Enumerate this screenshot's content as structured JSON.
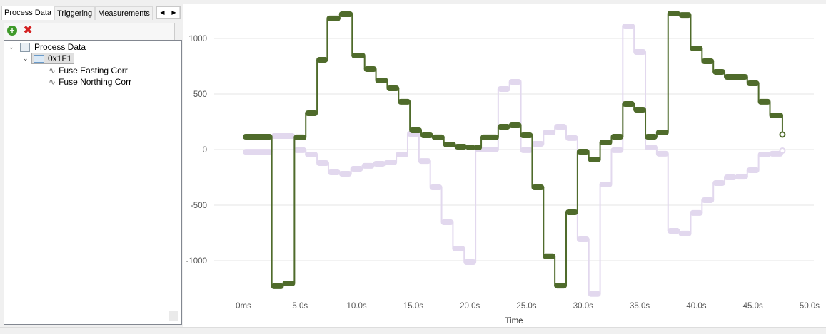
{
  "tabs": [
    "Process Data",
    "Triggering",
    "Measurements"
  ],
  "tab_nav": {
    "prev": "◀",
    "next": "▶"
  },
  "toolbar": {
    "add_icon": "add-circle-icon",
    "remove_icon": "remove-x-icon"
  },
  "tree": {
    "root": "Process Data",
    "group": "0x1F1",
    "channels": [
      "Fuse Easting Corr",
      "Fuse Northing Corr"
    ]
  },
  "colors": {
    "easting": "#4f6b2b",
    "northing": "#e2d8ee"
  },
  "chart_data": {
    "type": "line",
    "step": true,
    "xlabel": "Time",
    "ylabel": "",
    "xlim": [
      0,
      50
    ],
    "ylim": [
      -1310,
      1230
    ],
    "xticks": [
      0,
      5,
      10,
      15,
      20,
      25,
      30,
      35,
      40,
      45,
      50
    ],
    "xtick_labels": [
      "0ms",
      "5.0s",
      "10.0s",
      "15.0s",
      "20.0s",
      "25.0s",
      "30.0s",
      "35.0s",
      "40.0s",
      "45.0s",
      "50.0s"
    ],
    "yticks": [
      1000,
      500,
      0,
      -500,
      -1000
    ],
    "ytick_labels": [
      "1000",
      "500",
      "0",
      "-500",
      "-1000"
    ],
    "grid": true,
    "series": [
      {
        "name": "Fuse Easting Corr",
        "end": 47.6,
        "t": [
          0,
          2.5,
          3.5,
          4.5,
          5.5,
          6.5,
          7.4,
          8.5,
          9.6,
          10.7,
          11.7,
          12.7,
          13.7,
          14.7,
          15.7,
          16.7,
          17.7,
          18.7,
          19.7,
          20.4,
          21.0,
          22.5,
          23.5,
          24.5,
          25.5,
          26.5,
          27.5,
          28.5,
          29.5,
          30.5,
          31.5,
          32.5,
          33.5,
          34.5,
          35.5,
          36.5,
          37.5,
          38.5,
          39.5,
          40.5,
          41.5,
          42.5,
          44.5,
          45.5,
          46.5
        ],
        "v": [
          115,
          -1230,
          -1205,
          110,
          327,
          808,
          1180,
          1218,
          846,
          724,
          622,
          551,
          430,
          173,
          128,
          110,
          45,
          26,
          19,
          19,
          110,
          205,
          218,
          128,
          -340,
          -960,
          -1225,
          -564,
          -19,
          -90,
          64,
          115,
          410,
          359,
          115,
          154,
          1224,
          1211,
          910,
          795,
          699,
          654,
          596,
          430,
          308
        ],
        "last": 135
      },
      {
        "name": "Fuse Northing Corr",
        "end": 47.6,
        "t": [
          0,
          2.5,
          4.5,
          5.5,
          6.5,
          7.5,
          8.5,
          9.5,
          10.5,
          11.5,
          12.5,
          13.5,
          14.5,
          15.5,
          16.5,
          17.5,
          18.5,
          19.5,
          20.5,
          22.5,
          23.5,
          24.5,
          25.5,
          26.5,
          27.5,
          28.5,
          29.5,
          30.5,
          31.5,
          32.5,
          33.5,
          34.5,
          35.5,
          36.5,
          37.5,
          38.5,
          39.5,
          40.5,
          41.5,
          42.5,
          43.5,
          44.5,
          45.5,
          46.5
        ],
        "v": [
          -20,
          122,
          -6,
          -45,
          -122,
          -205,
          -218,
          -173,
          -147,
          -128,
          -115,
          -45,
          141,
          -103,
          -340,
          -654,
          -891,
          -1013,
          0,
          545,
          609,
          -6,
          51,
          154,
          205,
          103,
          -808,
          -1300,
          -314,
          -6,
          1109,
          878,
          19,
          -38,
          -731,
          -756,
          -570,
          -455,
          -301,
          -250,
          -244,
          -186,
          -45,
          -38
        ],
        "last": -10
      }
    ]
  }
}
